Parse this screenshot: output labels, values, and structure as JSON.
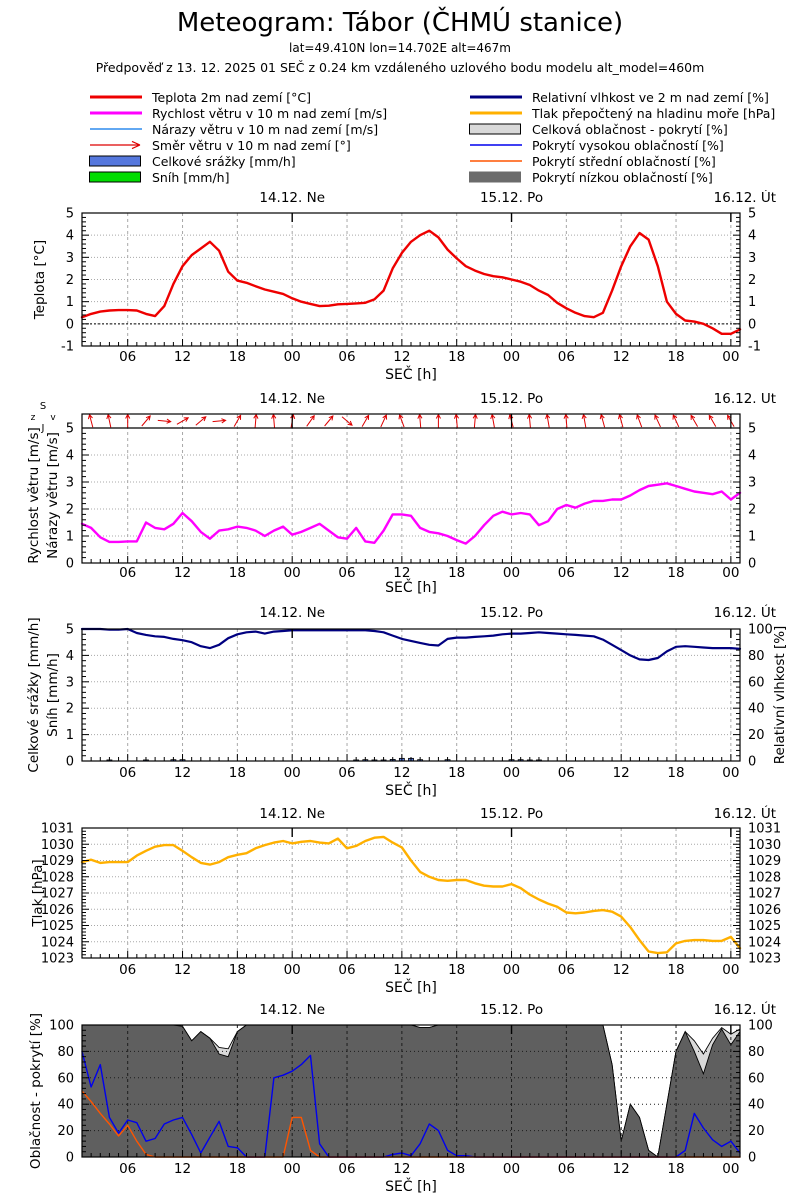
{
  "header": {
    "title": "Meteogram: Tábor (ČHMÚ stanice)",
    "subtitle1": "lat=49.410N lon=14.702E alt=467m",
    "subtitle2": "Předpověď z 13. 12. 2025 01 SEČ z 0.24 km vzdáleného uzlového bodu modelu alt_model=460m"
  },
  "legend": {
    "left": [
      {
        "name": "temperature-2m",
        "label": "Teplota 2m nad zemí [°C]",
        "swatch": "line",
        "color": "#ee0000",
        "thick": 3
      },
      {
        "name": "wind-speed",
        "label": "Rychlost větru v 10 m nad zemí [m/s]",
        "swatch": "line",
        "color": "#ff00ff",
        "thick": 3
      },
      {
        "name": "wind-gusts",
        "label": "Nárazy větru v 10 m nad zemí [m/s]",
        "swatch": "line",
        "color": "#2e8bee",
        "thick": 1.4
      },
      {
        "name": "wind-direction",
        "label": "Směr větru v 10 m nad zemí [°]",
        "swatch": "arrow",
        "color": "#dd0000"
      },
      {
        "name": "total-precipitation",
        "label": "Celkové srážky [mm/h]",
        "swatch": "box",
        "color": "#5577dd",
        "border": "#000000"
      },
      {
        "name": "snow",
        "label": "Sníh [mm/h]",
        "swatch": "box",
        "color": "#00dd00",
        "border": "#000000"
      }
    ],
    "right": [
      {
        "name": "relative-humidity",
        "label": "Relativní vlhkost ve 2 m nad zemí [%]",
        "swatch": "line",
        "color": "#000080",
        "thick": 3
      },
      {
        "name": "sea-level-pressure",
        "label": "Tlak přepočtený na hladinu moře [hPa]",
        "swatch": "line",
        "color": "#ffb000",
        "thick": 3
      },
      {
        "name": "total-cloud-cover",
        "label": "Celková oblačnost - pokrytí [%]",
        "swatch": "box",
        "color": "#d9d9d9",
        "border": "#000000"
      },
      {
        "name": "high-cloud-cover",
        "label": "Pokrytí vysokou oblačností [%]",
        "swatch": "line",
        "color": "#0000ee",
        "thick": 1.4
      },
      {
        "name": "middle-cloud-cover",
        "label": "Pokrytí střední oblačností [%]",
        "swatch": "line",
        "color": "#ff5500",
        "thick": 1.4
      },
      {
        "name": "low-cloud-cover",
        "label": "Pokrytí nízkou oblačností [%]",
        "swatch": "box",
        "color": "#6b6b6b",
        "border": "#6b6b6b"
      }
    ]
  },
  "axis": {
    "x_title": "SEČ [h]",
    "x_range": [
      1,
      73
    ],
    "x_tick_hours": [
      6,
      12,
      18,
      24,
      30,
      36,
      42,
      48,
      54,
      60,
      66,
      72
    ],
    "x_tick_labels": [
      "06",
      "12",
      "18",
      "00",
      "06",
      "12",
      "18",
      "00",
      "06",
      "12",
      "18",
      "00"
    ],
    "day_labels": [
      {
        "hour": 24,
        "label": "14.12. Ne"
      },
      {
        "hour": 48,
        "label": "15.12. Po"
      },
      {
        "hour": 72,
        "label": "16.12. Út"
      }
    ]
  },
  "chart_data": [
    {
      "type": "line",
      "name": "temperature",
      "ylabel": "Teplota [°C]",
      "ylim": [
        -1,
        5
      ],
      "yticks": [
        -1,
        0,
        1,
        2,
        3,
        4,
        5
      ],
      "zero_line": true,
      "series": [
        {
          "name": "Teplota 2m nad zemí [°C]",
          "color": "#ee0000",
          "width": 2.4,
          "values": [
            0.3,
            0.45,
            0.55,
            0.6,
            0.62,
            0.62,
            0.6,
            0.45,
            0.35,
            0.8,
            1.8,
            2.6,
            3.1,
            3.4,
            3.7,
            3.3,
            2.35,
            1.95,
            1.85,
            1.7,
            1.55,
            1.45,
            1.35,
            1.15,
            1.0,
            0.9,
            0.8,
            0.82,
            0.88,
            0.9,
            0.92,
            0.95,
            1.1,
            1.5,
            2.5,
            3.2,
            3.7,
            4.0,
            4.2,
            3.9,
            3.35,
            2.95,
            2.6,
            2.4,
            2.25,
            2.15,
            2.1,
            2.0,
            1.9,
            1.75,
            1.5,
            1.3,
            0.95,
            0.7,
            0.5,
            0.35,
            0.3,
            0.5,
            1.5,
            2.6,
            3.5,
            4.1,
            3.8,
            2.6,
            1.0,
            0.45,
            0.15,
            0.1,
            0.0,
            -0.2,
            -0.45,
            -0.45,
            -0.25
          ]
        }
      ]
    },
    {
      "type": "line",
      "name": "wind",
      "ylabels_left": [
        "Rychlost větru [m/s]",
        "Nárazy větru [m/s]"
      ],
      "ylim": [
        0,
        5
      ],
      "yticks": [
        0,
        1,
        2,
        3,
        4,
        5
      ],
      "compass": {
        "top": "S",
        "bottom": "J",
        "left": "z",
        "right": "v"
      },
      "series": [
        {
          "name": "Rychlost větru v 10 m nad zemí [m/s]",
          "color": "#ff00ff",
          "width": 2.4,
          "values": [
            1.45,
            1.3,
            0.95,
            0.78,
            0.78,
            0.8,
            0.8,
            1.5,
            1.3,
            1.25,
            1.45,
            1.85,
            1.55,
            1.15,
            0.9,
            1.2,
            1.25,
            1.35,
            1.3,
            1.2,
            1.0,
            1.2,
            1.35,
            1.05,
            1.15,
            1.3,
            1.45,
            1.2,
            0.95,
            0.9,
            1.3,
            0.8,
            0.75,
            1.2,
            1.8,
            1.8,
            1.75,
            1.3,
            1.15,
            1.1,
            1.0,
            0.85,
            0.72,
            1.0,
            1.4,
            1.75,
            1.9,
            1.8,
            1.85,
            1.8,
            1.4,
            1.55,
            2.0,
            2.15,
            2.05,
            2.2,
            2.3,
            2.3,
            2.35,
            2.35,
            2.5,
            2.7,
            2.85,
            2.9,
            2.95,
            2.85,
            2.75,
            2.65,
            2.6,
            2.55,
            2.65,
            2.35,
            2.6
          ]
        }
      ],
      "wind_arrows": {
        "color": "#dd0000",
        "start_hour": 2,
        "hour_step": 2,
        "angles_deg_from_north": [
          -15,
          -12,
          0,
          40,
          95,
          60,
          50,
          85,
          30,
          5,
          -5,
          10,
          35,
          40,
          130,
          30,
          25,
          -20,
          -5,
          0,
          -5,
          5,
          -10,
          -15,
          -5,
          -10,
          -5,
          -10,
          -15,
          -15,
          -20,
          -25,
          -25,
          -30,
          -30,
          -30
        ]
      }
    },
    {
      "type": "line+bars",
      "name": "precipitation-humidity",
      "ylabels_left": [
        "Celkové srážky [mm/h]",
        "Sníh [mm/h]"
      ],
      "ylabel_right": "Relativní vlhkost [%]",
      "ylim_left": [
        0,
        5
      ],
      "yticks_left": [
        0,
        1,
        2,
        3,
        4,
        5
      ],
      "ylim_right": [
        0,
        100
      ],
      "yticks_right": [
        0,
        20,
        40,
        60,
        80,
        100
      ],
      "bar_color": "#5577dd",
      "snow_bars": [],
      "precip_bars": [
        {
          "hour": 4,
          "value": 0.04
        },
        {
          "hour": 8,
          "value": 0.04
        },
        {
          "hour": 11,
          "value": 0.05
        },
        {
          "hour": 12,
          "value": 0.05
        },
        {
          "hour": 31,
          "value": 0.04
        },
        {
          "hour": 32,
          "value": 0.05
        },
        {
          "hour": 33,
          "value": 0.04
        },
        {
          "hour": 34,
          "value": 0.04
        },
        {
          "hour": 35,
          "value": 0.06
        },
        {
          "hour": 36,
          "value": 0.1
        },
        {
          "hour": 37,
          "value": 0.1
        },
        {
          "hour": 38,
          "value": 0.05
        },
        {
          "hour": 41,
          "value": 0.05
        },
        {
          "hour": 48,
          "value": 0.05
        },
        {
          "hour": 49,
          "value": 0.05
        },
        {
          "hour": 50,
          "value": 0.04
        },
        {
          "hour": 51,
          "value": 0.04
        }
      ],
      "series": [
        {
          "name": "Relativní vlhkost ve 2 m nad zemí [%]",
          "color": "#000080",
          "width": 2.2,
          "axis": "right",
          "values": [
            100,
            100,
            100,
            99.5,
            99.5,
            100,
            97,
            95.5,
            94.5,
            94,
            92.5,
            91.5,
            90,
            87,
            85.5,
            88,
            93,
            96,
            97.5,
            98,
            96.5,
            98,
            98.5,
            99,
            99,
            99,
            99,
            99,
            99,
            99,
            99,
            99,
            98.5,
            97.5,
            95,
            92.5,
            91,
            89.5,
            88,
            87.5,
            92.5,
            93.5,
            93.5,
            94,
            94.5,
            95,
            96,
            96.5,
            96.5,
            97,
            97.5,
            97,
            96.5,
            96,
            95.5,
            95,
            94.5,
            92,
            88,
            84,
            80,
            77,
            76.5,
            78,
            83,
            86.5,
            87,
            86.5,
            86,
            85.5,
            85.5,
            85.5,
            85
          ]
        }
      ]
    },
    {
      "type": "line",
      "name": "pressure",
      "ylabel": "Tlak [hPa]",
      "ylim": [
        1023,
        1031
      ],
      "yticks": [
        1023,
        1024,
        1025,
        1026,
        1027,
        1028,
        1029,
        1030,
        1031
      ],
      "series": [
        {
          "name": "Tlak přepočtený na hladinu moře [hPa]",
          "color": "#ffb000",
          "width": 2.4,
          "values": [
            1028.9,
            1029.05,
            1028.85,
            1028.9,
            1028.9,
            1028.9,
            1029.3,
            1029.6,
            1029.85,
            1029.95,
            1029.95,
            1029.6,
            1029.2,
            1028.85,
            1028.75,
            1028.9,
            1029.2,
            1029.35,
            1029.45,
            1029.75,
            1029.95,
            1030.1,
            1030.2,
            1030.05,
            1030.15,
            1030.2,
            1030.1,
            1030.05,
            1030.35,
            1029.75,
            1029.9,
            1030.2,
            1030.4,
            1030.45,
            1030.1,
            1029.8,
            1029.0,
            1028.3,
            1028.0,
            1027.8,
            1027.75,
            1027.8,
            1027.8,
            1027.6,
            1027.45,
            1027.4,
            1027.4,
            1027.55,
            1027.3,
            1026.9,
            1026.6,
            1026.35,
            1026.15,
            1025.8,
            1025.75,
            1025.8,
            1025.9,
            1025.95,
            1025.85,
            1025.55,
            1024.9,
            1024.1,
            1023.4,
            1023.3,
            1023.35,
            1023.9,
            1024.05,
            1024.1,
            1024.1,
            1024.05,
            1024.05,
            1024.3,
            1023.6
          ]
        }
      ]
    },
    {
      "type": "area+line",
      "name": "clouds",
      "ylabel": "Oblačnost - pokrytí [%]",
      "ylim": [
        0,
        100
      ],
      "yticks": [
        0,
        20,
        40,
        60,
        80,
        100
      ],
      "areas": [
        {
          "name": "Celková oblačnost - pokrytí [%]",
          "color": "#d9d9d9",
          "values": [
            100,
            100,
            100,
            100,
            100,
            100,
            100,
            100,
            100,
            100,
            100,
            99,
            88,
            95,
            90,
            83,
            82,
            95,
            100,
            100,
            100,
            100,
            100,
            100,
            100,
            100,
            100,
            100,
            100,
            100,
            100,
            100,
            100,
            100,
            100,
            100,
            100,
            98,
            98,
            100,
            100,
            100,
            100,
            100,
            100,
            100,
            100,
            100,
            100,
            100,
            100,
            100,
            100,
            100,
            100,
            100,
            100,
            100,
            70,
            12,
            40,
            30,
            5,
            0,
            40,
            80,
            95,
            88,
            78,
            90,
            98,
            93,
            97
          ]
        },
        {
          "name": "Pokrytí nízkou oblačností [%]",
          "color": "#5f5f5f",
          "values": [
            100,
            100,
            100,
            100,
            100,
            100,
            100,
            100,
            100,
            100,
            100,
            99,
            88,
            95,
            90,
            78,
            76,
            95,
            100,
            100,
            100,
            100,
            100,
            100,
            100,
            100,
            100,
            100,
            100,
            100,
            100,
            100,
            100,
            100,
            100,
            100,
            100,
            98,
            98,
            100,
            100,
            100,
            100,
            100,
            100,
            100,
            100,
            100,
            100,
            100,
            100,
            100,
            100,
            100,
            100,
            100,
            100,
            100,
            70,
            12,
            40,
            30,
            5,
            0,
            40,
            80,
            95,
            80,
            63,
            85,
            97,
            85,
            95
          ]
        }
      ],
      "series": [
        {
          "name": "Pokrytí vysokou oblačností [%]",
          "color": "#0000ee",
          "width": 1.4,
          "values": [
            80,
            53,
            70,
            30,
            18,
            28,
            26,
            12,
            14,
            25,
            28,
            30,
            17,
            3,
            15,
            27,
            8,
            7,
            0,
            0,
            0,
            60,
            62,
            65,
            70,
            77,
            10,
            0,
            0,
            0,
            0,
            0,
            0,
            0,
            2,
            3,
            1,
            10,
            25,
            20,
            5,
            1,
            1,
            0,
            0,
            0,
            0,
            0,
            0,
            0,
            0,
            0,
            0,
            0,
            0,
            0,
            0,
            0,
            0,
            0,
            0,
            0,
            0,
            0,
            0,
            0,
            5,
            33,
            22,
            13,
            8,
            12,
            3
          ]
        },
        {
          "name": "Pokrytí střední oblačností [%]",
          "color": "#ff5500",
          "width": 1.4,
          "values": [
            50,
            42,
            33,
            25,
            16,
            24,
            12,
            2,
            0,
            0,
            0,
            0,
            0,
            0,
            0,
            0,
            0,
            0,
            0,
            0,
            0,
            0,
            0,
            30,
            30,
            5,
            0,
            0,
            0,
            0,
            0,
            0,
            0,
            0,
            0,
            0,
            0,
            0,
            0,
            0,
            0,
            0,
            0,
            0,
            0,
            0,
            0,
            0,
            0,
            0,
            0,
            0,
            0,
            0,
            0,
            0,
            0,
            0,
            0,
            0,
            0,
            0,
            0,
            0,
            0,
            0,
            0,
            0,
            0,
            0,
            0,
            0,
            0
          ]
        }
      ]
    }
  ]
}
